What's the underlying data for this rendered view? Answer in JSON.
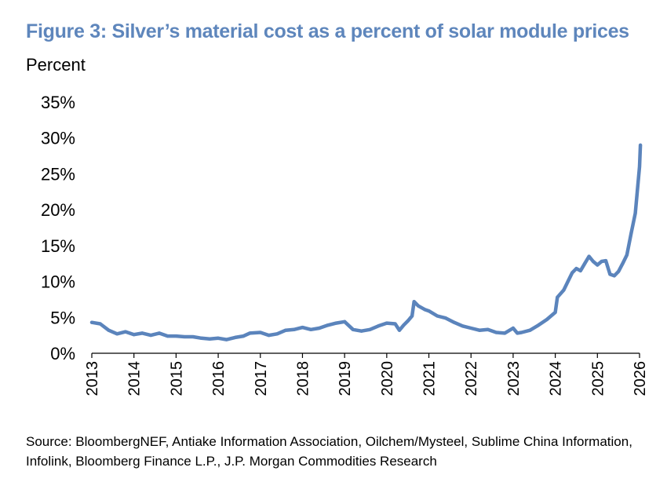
{
  "figure": {
    "title": "Figure 3: Silver’s material cost as a percent of solar module prices",
    "title_color": "#5E86BC",
    "source": "Source: BloombergNEF, Antiake Information Association, Oilchem/Mysteel, Sublime China Information, Infolink, Bloomberg Finance L.P., J.P. Morgan Commodities Research"
  },
  "chart_data": {
    "type": "line",
    "ylabel": "Percent",
    "ylim": [
      0,
      35
    ],
    "yticks": [
      "0%",
      "5%",
      "10%",
      "15%",
      "20%",
      "25%",
      "30%",
      "35%"
    ],
    "xlim": [
      2013,
      2026
    ],
    "xticks": [
      "2013",
      "2014",
      "2015",
      "2016",
      "2017",
      "2018",
      "2019",
      "2020",
      "2021",
      "2022",
      "2023",
      "2024",
      "2025",
      "2026"
    ],
    "grid": false,
    "legend": "none",
    "series_color": "#5B84BC",
    "series": [
      {
        "x": [
          2013.0,
          2013.2,
          2013.4,
          2013.6,
          2013.8,
          2014.0,
          2014.2,
          2014.4,
          2014.6,
          2014.8,
          2015.0,
          2015.2,
          2015.4,
          2015.6,
          2015.8,
          2016.0,
          2016.2,
          2016.4,
          2016.6,
          2016.75,
          2017.0,
          2017.2,
          2017.4,
          2017.6,
          2017.8,
          2018.0,
          2018.2,
          2018.4,
          2018.6,
          2018.8,
          2019.0,
          2019.2,
          2019.4,
          2019.6,
          2019.8,
          2020.0,
          2020.2,
          2020.3,
          2020.4,
          2020.5,
          2020.6,
          2020.65,
          2020.75,
          2020.9,
          2021.0,
          2021.2,
          2021.4,
          2021.6,
          2021.8,
          2022.0,
          2022.2,
          2022.4,
          2022.6,
          2022.8,
          2023.0,
          2023.1,
          2023.2,
          2023.4,
          2023.6,
          2023.8,
          2024.0,
          2024.05,
          2024.2,
          2024.3,
          2024.4,
          2024.5,
          2024.6,
          2024.7,
          2024.8,
          2024.9,
          2025.0,
          2025.1,
          2025.2,
          2025.3,
          2025.4,
          2025.5,
          2025.6,
          2025.7,
          2025.8,
          2025.9,
          2026.0,
          2026.02
        ],
        "y": [
          4.3,
          4.1,
          3.2,
          2.7,
          3.0,
          2.6,
          2.8,
          2.5,
          2.8,
          2.4,
          2.4,
          2.3,
          2.3,
          2.1,
          2.0,
          2.1,
          1.9,
          2.2,
          2.4,
          2.8,
          2.9,
          2.5,
          2.7,
          3.2,
          3.3,
          3.6,
          3.3,
          3.5,
          3.9,
          4.2,
          4.4,
          3.3,
          3.1,
          3.3,
          3.8,
          4.2,
          4.1,
          3.2,
          3.9,
          4.5,
          5.2,
          7.2,
          6.6,
          6.1,
          5.9,
          5.2,
          4.9,
          4.3,
          3.8,
          3.5,
          3.2,
          3.3,
          2.9,
          2.8,
          3.5,
          2.8,
          2.9,
          3.2,
          3.9,
          4.7,
          5.7,
          7.8,
          8.8,
          10.0,
          11.2,
          11.8,
          11.5,
          12.5,
          13.5,
          12.8,
          12.3,
          12.8,
          12.9,
          11.0,
          10.8,
          11.4,
          12.5,
          13.7,
          16.7,
          19.5,
          26.0,
          29.0
        ]
      }
    ]
  }
}
